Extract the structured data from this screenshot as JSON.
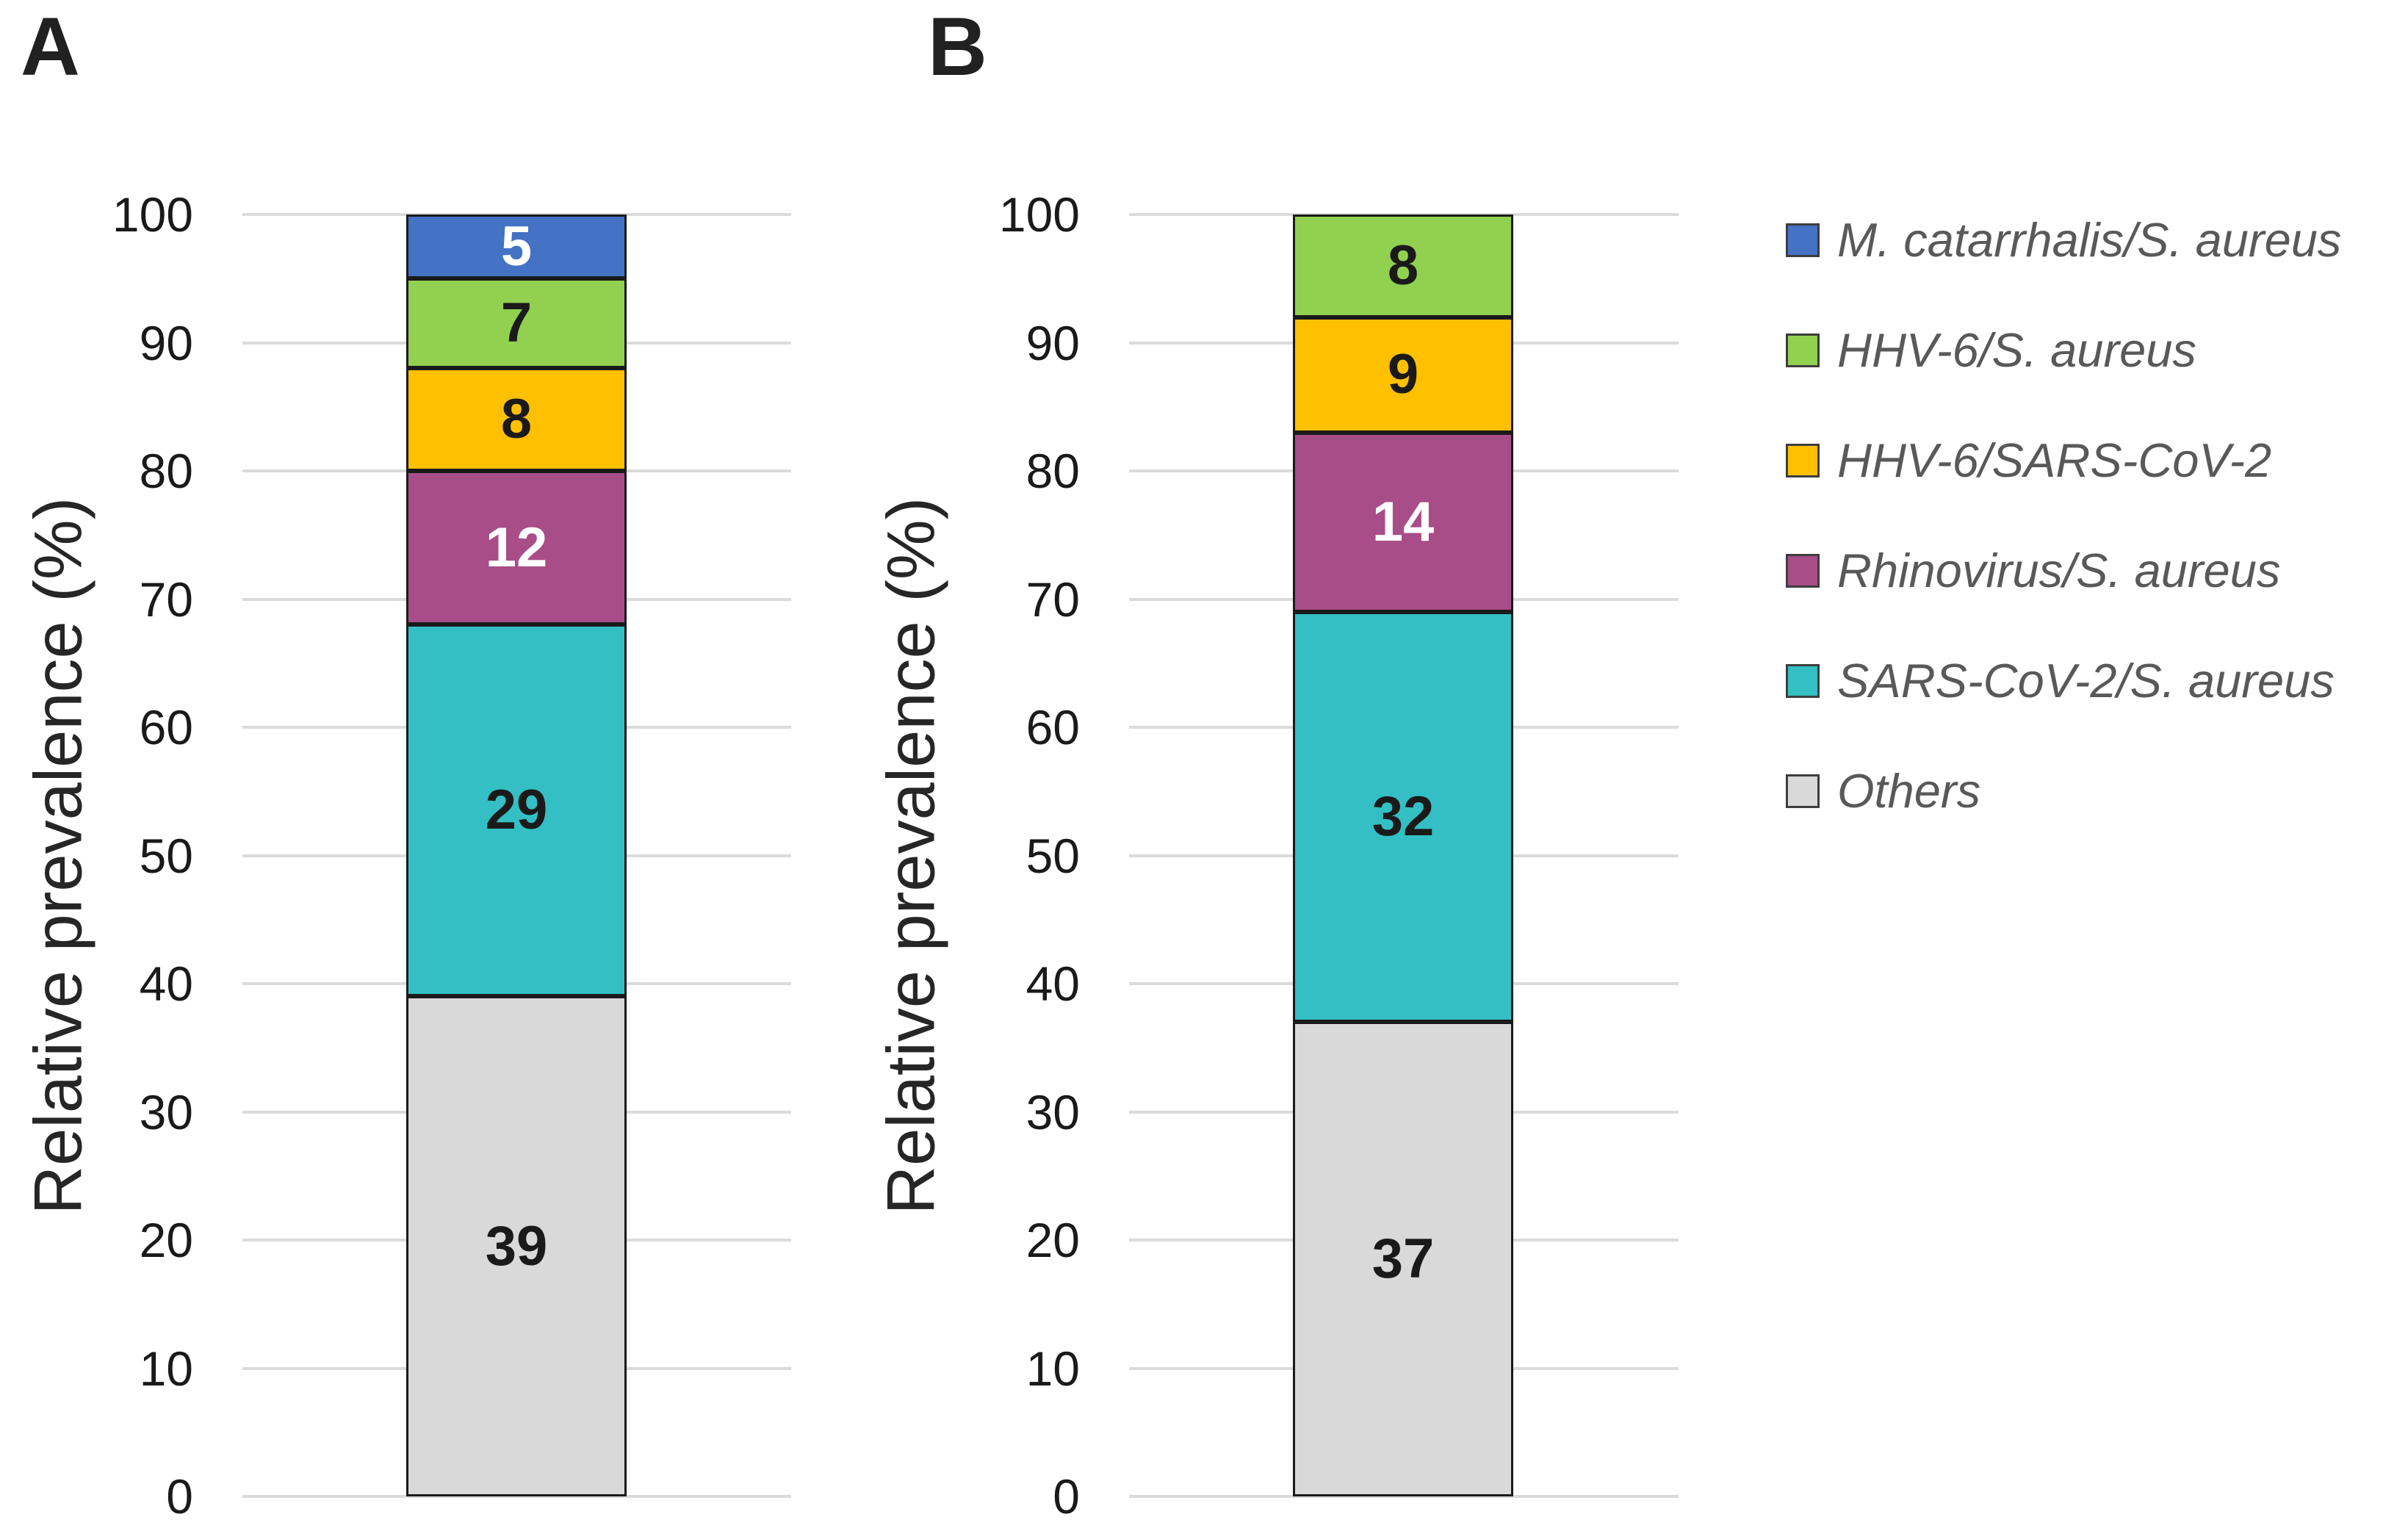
{
  "chart_data": [
    {
      "type": "bar",
      "stacked": true,
      "title": "A",
      "ylabel": "Relative prevalence (%)",
      "ylim": [
        0,
        100
      ],
      "yticks": [
        0,
        10,
        20,
        30,
        40,
        50,
        60,
        70,
        80,
        90,
        100
      ],
      "grid": true,
      "legend_position": "right",
      "categories": [
        ""
      ],
      "series_bottom_to_top": [
        {
          "name": "Others",
          "value": 39,
          "color": "#D9D9D9",
          "label_color": "#1A1A1A"
        },
        {
          "name": "SARS-CoV-2/S. aureus",
          "value": 29,
          "color": "#33BFC4",
          "label_color": "#1A1A1A"
        },
        {
          "name": "Rhinovirus/S. aureus",
          "value": 12,
          "color": "#A84D88",
          "label_color": "#FFFFFF"
        },
        {
          "name": "HHV-6/SARS-CoV-2",
          "value": 8,
          "color": "#FFC000",
          "label_color": "#1A1A1A"
        },
        {
          "name": "HHV-6/S. aureus",
          "value": 7,
          "color": "#92D050",
          "label_color": "#1A1A1A"
        },
        {
          "name": "M. catarrhalis/S. aureus",
          "value": 5,
          "color": "#4472C4",
          "label_color": "#FFFFFF"
        }
      ]
    },
    {
      "type": "bar",
      "stacked": true,
      "title": "B",
      "ylabel": "Relative prevalence (%)",
      "ylim": [
        0,
        100
      ],
      "yticks": [
        0,
        10,
        20,
        30,
        40,
        50,
        60,
        70,
        80,
        90,
        100
      ],
      "grid": true,
      "legend_position": "right",
      "categories": [
        ""
      ],
      "series_bottom_to_top": [
        {
          "name": "Others",
          "value": 37,
          "color": "#D9D9D9",
          "label_color": "#1A1A1A"
        },
        {
          "name": "SARS-CoV-2/S. aureus",
          "value": 32,
          "color": "#33BFC4",
          "label_color": "#1A1A1A"
        },
        {
          "name": "Rhinovirus/S. aureus",
          "value": 14,
          "color": "#A84D88",
          "label_color": "#FFFFFF"
        },
        {
          "name": "HHV-6/SARS-CoV-2",
          "value": 9,
          "color": "#FFC000",
          "label_color": "#1A1A1A"
        },
        {
          "name": "HHV-6/S. aureus",
          "value": 8,
          "color": "#92D050",
          "label_color": "#1A1A1A"
        }
      ]
    }
  ],
  "legend": {
    "entries": [
      {
        "label": "M. catarrhalis/S. aureus",
        "color": "#4472C4"
      },
      {
        "label": "HHV-6/S. aureus",
        "color": "#92D050"
      },
      {
        "label": "HHV-6/SARS-CoV-2",
        "color": "#FFC000"
      },
      {
        "label": "Rhinovirus/S. aureus",
        "color": "#A84D88"
      },
      {
        "label": "SARS-CoV-2/S. aureus",
        "color": "#33BFC4"
      },
      {
        "label": "Others",
        "color": "#D9D9D9"
      }
    ]
  }
}
